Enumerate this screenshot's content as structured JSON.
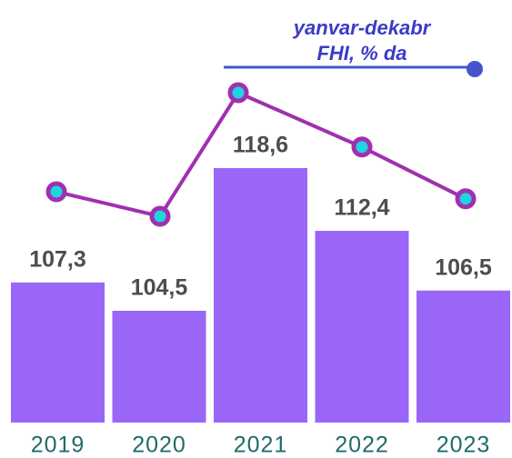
{
  "chart_data": {
    "type": "bar",
    "categories": [
      "2019",
      "2020",
      "2021",
      "2022",
      "2023"
    ],
    "series": [
      {
        "name": [
          "yanvar-dekabr",
          "FHI, % da"
        ],
        "values": [
          107.3,
          104.5,
          118.6,
          112.4,
          106.5
        ],
        "value_labels": [
          "107,3",
          "104,5",
          "118,6",
          "112,4",
          "106,5"
        ],
        "color": "#9966f8",
        "line_color": "#a030b0",
        "marker_color": "#1fd6e0",
        "legend_color": "#4455cc"
      }
    ]
  }
}
